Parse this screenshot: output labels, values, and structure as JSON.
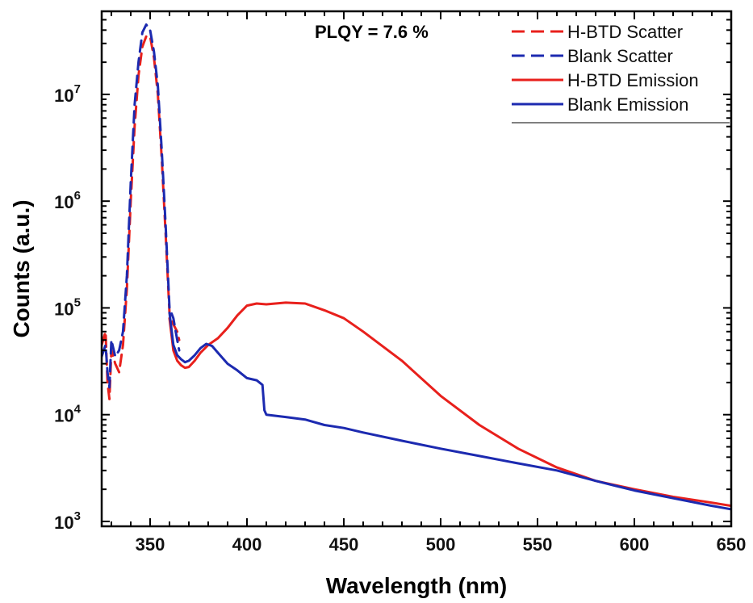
{
  "chart_data": {
    "type": "line",
    "xlabel": "Wavelength (nm)",
    "ylabel": "Counts (a.u.)",
    "xlim": [
      325,
      650
    ],
    "ylim": [
      900,
      60000000
    ],
    "yscale": "log",
    "x_ticks": [
      350,
      400,
      450,
      500,
      550,
      600,
      650
    ],
    "y_ticks": [
      {
        "value": 1000,
        "base": "10",
        "exp": "3"
      },
      {
        "value": 10000,
        "base": "10",
        "exp": "4"
      },
      {
        "value": 100000,
        "base": "10",
        "exp": "5"
      },
      {
        "value": 1000000,
        "base": "10",
        "exp": "6"
      },
      {
        "value": 10000000,
        "base": "10",
        "exp": "7"
      }
    ],
    "annotation": "PLQY = 7.6 %",
    "legend_position": "top-right",
    "series": [
      {
        "name": "H-BTD Scatter",
        "color": "#e8201c",
        "style": "dashed",
        "x": [
          325,
          327,
          328,
          329,
          330,
          332,
          334,
          336,
          338,
          340,
          342,
          344,
          346,
          348,
          350,
          352,
          354,
          356,
          358,
          360,
          362,
          364,
          365
        ],
        "y": [
          45000,
          60000,
          20000,
          14000,
          40000,
          30000,
          25000,
          45000,
          150000,
          1000000,
          5000000,
          15000000,
          28000000,
          35000000,
          35000000,
          22000000,
          10000000,
          2500000,
          500000,
          90000,
          70000,
          60000,
          50000
        ]
      },
      {
        "name": "Blank Scatter",
        "color": "#1c2ab0",
        "style": "dashed",
        "x": [
          325,
          327,
          328,
          329,
          330,
          332,
          334,
          336,
          338,
          340,
          342,
          344,
          346,
          348,
          350,
          352,
          354,
          356,
          358,
          360,
          362,
          364,
          365
        ],
        "y": [
          35000,
          45000,
          25000,
          18000,
          50000,
          35000,
          40000,
          60000,
          200000,
          1500000,
          8000000,
          20000000,
          38000000,
          45000000,
          40000000,
          25000000,
          12000000,
          3000000,
          600000,
          100000,
          80000,
          50000,
          40000
        ]
      },
      {
        "name": "H-BTD Emission",
        "color": "#e8201c",
        "style": "solid",
        "x": [
          360,
          362,
          364,
          366,
          368,
          370,
          373,
          376,
          380,
          385,
          390,
          395,
          400,
          405,
          410,
          420,
          430,
          440,
          450,
          460,
          480,
          500,
          520,
          540,
          560,
          580,
          600,
          620,
          640,
          650
        ],
        "y": [
          80000,
          40000,
          32000,
          29000,
          27500,
          28000,
          32000,
          38000,
          45000,
          52000,
          65000,
          85000,
          105000,
          110000,
          108000,
          112000,
          110000,
          95000,
          80000,
          60000,
          32000,
          15000,
          8000,
          4800,
          3200,
          2400,
          2000,
          1700,
          1500,
          1400
        ]
      },
      {
        "name": "Blank Emission",
        "color": "#1c2ab0",
        "style": "solid",
        "x": [
          360,
          362,
          364,
          366,
          368,
          370,
          373,
          376,
          379,
          382,
          385,
          390,
          395,
          400,
          405,
          408,
          409,
          410,
          420,
          430,
          440,
          450,
          460,
          480,
          500,
          520,
          540,
          560,
          580,
          600,
          620,
          640,
          650
        ],
        "y": [
          90000,
          45000,
          36000,
          33000,
          31000,
          32000,
          36000,
          42000,
          46000,
          44000,
          38000,
          30000,
          26000,
          22000,
          21000,
          19000,
          11000,
          10000,
          9500,
          9000,
          8000,
          7500,
          6800,
          5700,
          4800,
          4100,
          3500,
          3000,
          2400,
          1950,
          1650,
          1400,
          1300
        ]
      }
    ]
  }
}
